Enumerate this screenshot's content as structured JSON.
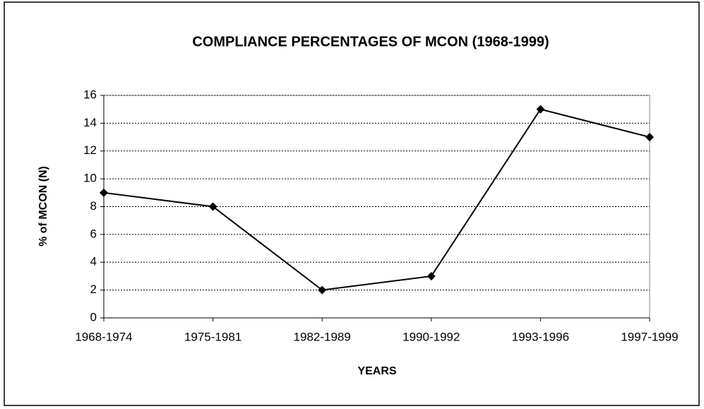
{
  "chart_data": {
    "type": "line",
    "title": "COMPLIANCE PERCENTAGES OF MCON (1968-1999)",
    "x_label": "YEARS",
    "y_label": "% of MCON (N)",
    "categories": [
      "1968-1974",
      "1975-1981",
      "1982-1989",
      "1990-1992",
      "1993-1996",
      "1997-1999"
    ],
    "series": [
      {
        "name": "MCON",
        "color": "#000000",
        "values": [
          9,
          8,
          2,
          3,
          15,
          13
        ]
      }
    ],
    "ylim": [
      0,
      16
    ],
    "yticks": [
      0,
      2,
      4,
      6,
      8,
      10,
      12,
      14,
      16
    ],
    "grid": true
  }
}
